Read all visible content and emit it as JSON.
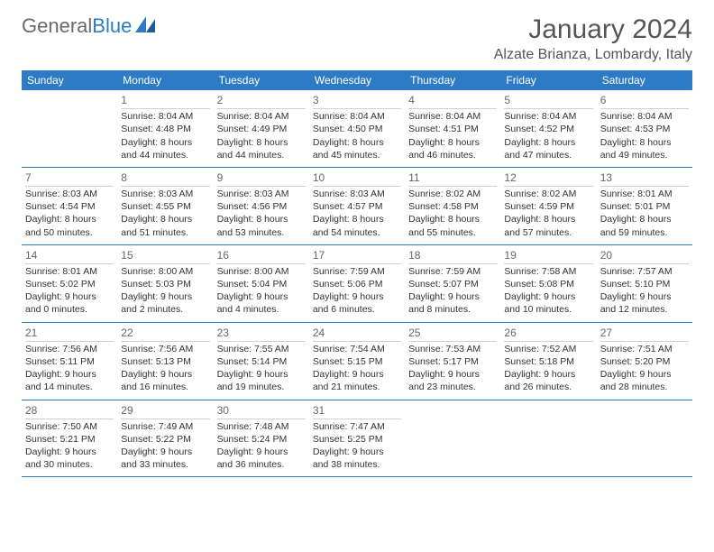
{
  "logo": {
    "text_gray": "General",
    "text_blue": "Blue"
  },
  "title": "January 2024",
  "location": "Alzate Brianza, Lombardy, Italy",
  "colors": {
    "header_bg": "#2d7bc4",
    "header_text": "#ffffff",
    "border": "#2d7bc4",
    "text": "#333333"
  },
  "day_labels": [
    "Sunday",
    "Monday",
    "Tuesday",
    "Wednesday",
    "Thursday",
    "Friday",
    "Saturday"
  ],
  "weeks": [
    [
      {
        "num": "",
        "sunrise": "",
        "sunset": "",
        "daylight": ""
      },
      {
        "num": "1",
        "sunrise": "Sunrise: 8:04 AM",
        "sunset": "Sunset: 4:48 PM",
        "daylight": "Daylight: 8 hours and 44 minutes."
      },
      {
        "num": "2",
        "sunrise": "Sunrise: 8:04 AM",
        "sunset": "Sunset: 4:49 PM",
        "daylight": "Daylight: 8 hours and 44 minutes."
      },
      {
        "num": "3",
        "sunrise": "Sunrise: 8:04 AM",
        "sunset": "Sunset: 4:50 PM",
        "daylight": "Daylight: 8 hours and 45 minutes."
      },
      {
        "num": "4",
        "sunrise": "Sunrise: 8:04 AM",
        "sunset": "Sunset: 4:51 PM",
        "daylight": "Daylight: 8 hours and 46 minutes."
      },
      {
        "num": "5",
        "sunrise": "Sunrise: 8:04 AM",
        "sunset": "Sunset: 4:52 PM",
        "daylight": "Daylight: 8 hours and 47 minutes."
      },
      {
        "num": "6",
        "sunrise": "Sunrise: 8:04 AM",
        "sunset": "Sunset: 4:53 PM",
        "daylight": "Daylight: 8 hours and 49 minutes."
      }
    ],
    [
      {
        "num": "7",
        "sunrise": "Sunrise: 8:03 AM",
        "sunset": "Sunset: 4:54 PM",
        "daylight": "Daylight: 8 hours and 50 minutes."
      },
      {
        "num": "8",
        "sunrise": "Sunrise: 8:03 AM",
        "sunset": "Sunset: 4:55 PM",
        "daylight": "Daylight: 8 hours and 51 minutes."
      },
      {
        "num": "9",
        "sunrise": "Sunrise: 8:03 AM",
        "sunset": "Sunset: 4:56 PM",
        "daylight": "Daylight: 8 hours and 53 minutes."
      },
      {
        "num": "10",
        "sunrise": "Sunrise: 8:03 AM",
        "sunset": "Sunset: 4:57 PM",
        "daylight": "Daylight: 8 hours and 54 minutes."
      },
      {
        "num": "11",
        "sunrise": "Sunrise: 8:02 AM",
        "sunset": "Sunset: 4:58 PM",
        "daylight": "Daylight: 8 hours and 55 minutes."
      },
      {
        "num": "12",
        "sunrise": "Sunrise: 8:02 AM",
        "sunset": "Sunset: 4:59 PM",
        "daylight": "Daylight: 8 hours and 57 minutes."
      },
      {
        "num": "13",
        "sunrise": "Sunrise: 8:01 AM",
        "sunset": "Sunset: 5:01 PM",
        "daylight": "Daylight: 8 hours and 59 minutes."
      }
    ],
    [
      {
        "num": "14",
        "sunrise": "Sunrise: 8:01 AM",
        "sunset": "Sunset: 5:02 PM",
        "daylight": "Daylight: 9 hours and 0 minutes."
      },
      {
        "num": "15",
        "sunrise": "Sunrise: 8:00 AM",
        "sunset": "Sunset: 5:03 PM",
        "daylight": "Daylight: 9 hours and 2 minutes."
      },
      {
        "num": "16",
        "sunrise": "Sunrise: 8:00 AM",
        "sunset": "Sunset: 5:04 PM",
        "daylight": "Daylight: 9 hours and 4 minutes."
      },
      {
        "num": "17",
        "sunrise": "Sunrise: 7:59 AM",
        "sunset": "Sunset: 5:06 PM",
        "daylight": "Daylight: 9 hours and 6 minutes."
      },
      {
        "num": "18",
        "sunrise": "Sunrise: 7:59 AM",
        "sunset": "Sunset: 5:07 PM",
        "daylight": "Daylight: 9 hours and 8 minutes."
      },
      {
        "num": "19",
        "sunrise": "Sunrise: 7:58 AM",
        "sunset": "Sunset: 5:08 PM",
        "daylight": "Daylight: 9 hours and 10 minutes."
      },
      {
        "num": "20",
        "sunrise": "Sunrise: 7:57 AM",
        "sunset": "Sunset: 5:10 PM",
        "daylight": "Daylight: 9 hours and 12 minutes."
      }
    ],
    [
      {
        "num": "21",
        "sunrise": "Sunrise: 7:56 AM",
        "sunset": "Sunset: 5:11 PM",
        "daylight": "Daylight: 9 hours and 14 minutes."
      },
      {
        "num": "22",
        "sunrise": "Sunrise: 7:56 AM",
        "sunset": "Sunset: 5:13 PM",
        "daylight": "Daylight: 9 hours and 16 minutes."
      },
      {
        "num": "23",
        "sunrise": "Sunrise: 7:55 AM",
        "sunset": "Sunset: 5:14 PM",
        "daylight": "Daylight: 9 hours and 19 minutes."
      },
      {
        "num": "24",
        "sunrise": "Sunrise: 7:54 AM",
        "sunset": "Sunset: 5:15 PM",
        "daylight": "Daylight: 9 hours and 21 minutes."
      },
      {
        "num": "25",
        "sunrise": "Sunrise: 7:53 AM",
        "sunset": "Sunset: 5:17 PM",
        "daylight": "Daylight: 9 hours and 23 minutes."
      },
      {
        "num": "26",
        "sunrise": "Sunrise: 7:52 AM",
        "sunset": "Sunset: 5:18 PM",
        "daylight": "Daylight: 9 hours and 26 minutes."
      },
      {
        "num": "27",
        "sunrise": "Sunrise: 7:51 AM",
        "sunset": "Sunset: 5:20 PM",
        "daylight": "Daylight: 9 hours and 28 minutes."
      }
    ],
    [
      {
        "num": "28",
        "sunrise": "Sunrise: 7:50 AM",
        "sunset": "Sunset: 5:21 PM",
        "daylight": "Daylight: 9 hours and 30 minutes."
      },
      {
        "num": "29",
        "sunrise": "Sunrise: 7:49 AM",
        "sunset": "Sunset: 5:22 PM",
        "daylight": "Daylight: 9 hours and 33 minutes."
      },
      {
        "num": "30",
        "sunrise": "Sunrise: 7:48 AM",
        "sunset": "Sunset: 5:24 PM",
        "daylight": "Daylight: 9 hours and 36 minutes."
      },
      {
        "num": "31",
        "sunrise": "Sunrise: 7:47 AM",
        "sunset": "Sunset: 5:25 PM",
        "daylight": "Daylight: 9 hours and 38 minutes."
      },
      {
        "num": "",
        "sunrise": "",
        "sunset": "",
        "daylight": ""
      },
      {
        "num": "",
        "sunrise": "",
        "sunset": "",
        "daylight": ""
      },
      {
        "num": "",
        "sunrise": "",
        "sunset": "",
        "daylight": ""
      }
    ]
  ]
}
